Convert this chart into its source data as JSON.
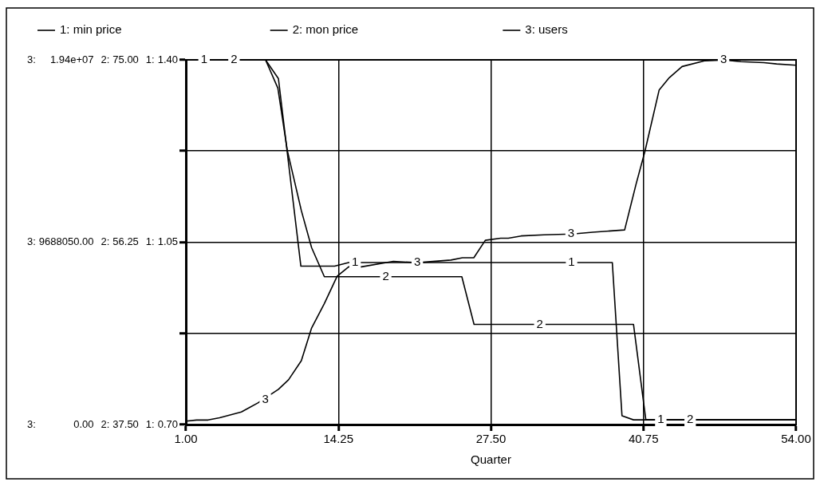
{
  "chart_data": {
    "type": "line",
    "xlabel": "Quarter",
    "xlim": [
      1,
      54
    ],
    "xticks": [
      {
        "value": 1,
        "label": "1.00"
      },
      {
        "value": 14.25,
        "label": "14.25"
      },
      {
        "value": 27.5,
        "label": "27.50"
      },
      {
        "value": 40.75,
        "label": "40.75"
      },
      {
        "value": 54,
        "label": "54.00"
      }
    ],
    "ylim": [
      0.7,
      1.4
    ],
    "yticks": [
      {
        "value": 0.7,
        "label": "0.70"
      },
      {
        "value": 0.875,
        "label": null
      },
      {
        "value": 1.05,
        "label": "1.05"
      },
      {
        "value": 1.225,
        "label": null
      },
      {
        "value": 1.4,
        "label": "1.40"
      }
    ],
    "y2lim": [
      37.5,
      75
    ],
    "y2ticks": [
      {
        "value": 37.5,
        "label": "37.50"
      },
      {
        "value": 46.875,
        "label": null
      },
      {
        "value": 56.25,
        "label": "56.25"
      },
      {
        "value": 65.625,
        "label": null
      },
      {
        "value": 75,
        "label": "75.00"
      }
    ],
    "y3lim": [
      0,
      19376100
    ],
    "y3ticks": [
      {
        "value": 0,
        "label": "0.00"
      },
      {
        "value": 4844025,
        "label": null
      },
      {
        "value": 9688050,
        "label": "9688050.00"
      },
      {
        "value": 14532075,
        "label": null
      },
      {
        "value": 19376100,
        "label": "1.94e+07"
      }
    ],
    "grid": true,
    "legend": "top",
    "annotations": [
      "1:",
      "1:",
      "1:",
      "2:",
      "2:",
      "2:",
      "3:",
      "3:",
      "3:",
      {
        "text": "1",
        "x": 2.58,
        "y": 1.4
      },
      {
        "text": "1",
        "x": 15.7,
        "y": 1.011
      },
      {
        "text": "1",
        "x": 34.5,
        "y": 1.011
      },
      {
        "text": "1",
        "x": 42.25,
        "y": 0.709
      },
      {
        "text": "2",
        "x": 5.18,
        "y": 1.4
      },
      {
        "text": "2",
        "x": 18.36,
        "y": 0.984
      },
      {
        "text": "2",
        "x": 31.74,
        "y": 0.892
      },
      {
        "text": "2",
        "x": 44.8,
        "y": 0.709
      },
      {
        "text": "3",
        "x": 7.9,
        "y": 0.747
      },
      {
        "text": "3",
        "x": 21.1,
        "y": 1.011
      },
      {
        "text": "3",
        "x": 34.46,
        "y": 1.066
      },
      {
        "text": "3",
        "x": 47.7,
        "y": 1.4
      }
    ],
    "series": [
      {
        "name": "1: min price",
        "color": "#000000",
        "axis": "y",
        "x": [
          1,
          7.92,
          9.04,
          10.99,
          13.92,
          15.14,
          38.04,
          38.88,
          39.88,
          54
        ],
        "values": [
          1.4,
          1.4,
          1.364,
          1.004,
          1.004,
          1.011,
          1.011,
          0.717,
          0.709,
          0.709
        ]
      },
      {
        "name": "2: mon price",
        "color": "#000000",
        "axis": "y2",
        "x": [
          1,
          7.92,
          8.99,
          9.81,
          11.03,
          11.92,
          13.03,
          24.97,
          26.03,
          39.88,
          40.95,
          54
        ],
        "values": [
          75,
          75,
          72.1,
          65.7,
          59.5,
          55.7,
          52.7,
          52.7,
          47.8,
          47.8,
          38.0,
          38.0
        ]
      },
      {
        "name": "3: users",
        "color": "#000000",
        "axis": "y3",
        "x": [
          1,
          1.93,
          2.93,
          3.93,
          5.82,
          7.26,
          9.04,
          9.92,
          11.03,
          11.92,
          13.03,
          14.14,
          15.14,
          16.25,
          19.02,
          21.13,
          24.02,
          25.02,
          26.01,
          27.01,
          28.34,
          29.01,
          30.12,
          32.12,
          34.56,
          36.33,
          39.11,
          40.11,
          40.88,
          42.11,
          42.99,
          44.1,
          46.1,
          47.76,
          49.2,
          51.2,
          52.31,
          54
        ],
        "values": [
          180000,
          240000,
          240000,
          360000,
          670000,
          1150000,
          1870000,
          2380000,
          3390000,
          5130000,
          6430000,
          7880000,
          8380000,
          8380000,
          8670000,
          8600000,
          8740000,
          8860000,
          8860000,
          9790000,
          9900000,
          9900000,
          10020000,
          10080000,
          10120000,
          10220000,
          10340000,
          12790000,
          14530000,
          17780000,
          18430000,
          19020000,
          19330000,
          19370000,
          19280000,
          19230000,
          19160000,
          19090000
        ]
      }
    ]
  }
}
